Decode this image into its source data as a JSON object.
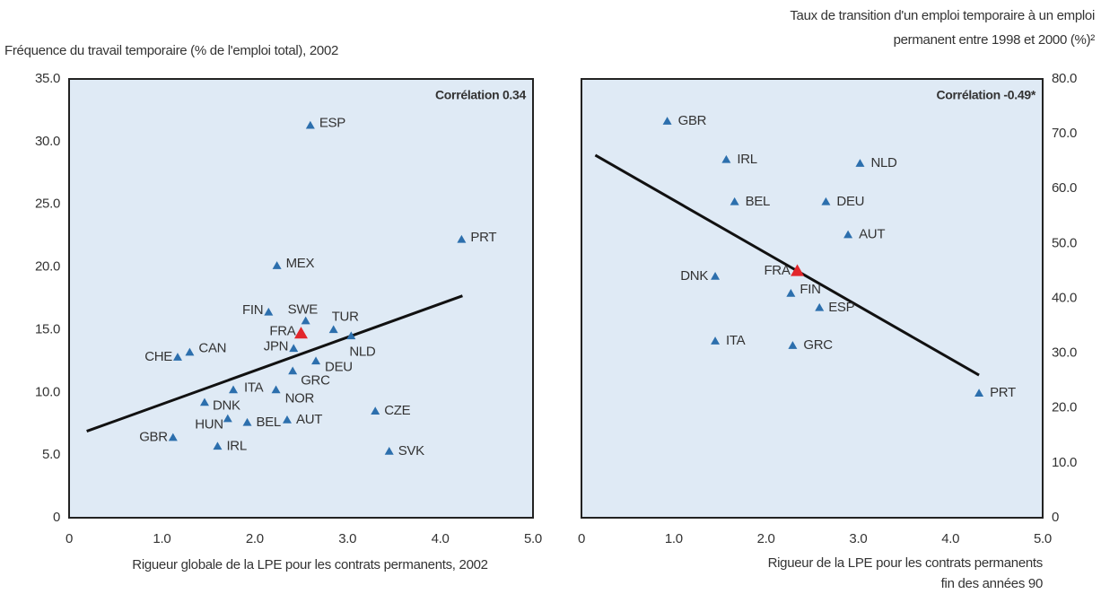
{
  "chart_data": [
    {
      "type": "scatter",
      "annotation": "Corrélation 0.34",
      "y_label": [
        "Fréquence du travail temporaire (% de l'emploi total), 2002"
      ],
      "x_label": [
        "Rigueur globale de la LPE pour les contrats permanents, 2002"
      ],
      "xlim": [
        0,
        5
      ],
      "ylim": [
        0,
        35
      ],
      "xticks": [
        0,
        {
          "value": 1,
          "label": "1.0"
        },
        {
          "value": 2,
          "label": "2.0"
        },
        {
          "value": 3,
          "label": "3.0"
        },
        {
          "value": 4,
          "label": "4.0"
        },
        {
          "value": 5,
          "label": "5.0"
        }
      ],
      "yticks": [
        0,
        {
          "value": 5,
          "label": "5.0"
        },
        {
          "value": 10,
          "label": "10.0"
        },
        {
          "value": 15,
          "label": "15.0"
        },
        {
          "value": 20,
          "label": "20.0"
        },
        {
          "value": 25,
          "label": "25.0"
        },
        {
          "value": 30,
          "label": "30.0"
        },
        {
          "value": 35,
          "label": "35.0"
        }
      ],
      "y_axis_side": "left",
      "color": "#2c6fad",
      "highlight": "FRA",
      "highlight_color": "#e2262b",
      "labels": [
        "ESP",
        "PRT",
        "MEX",
        "FIN",
        "SWE",
        "TUR",
        "FRA",
        "NLD",
        "JPN",
        "CAN",
        "CHE",
        "DEU",
        "GRC",
        "ITA",
        "NOR",
        "DNK",
        "CZE",
        "HUN",
        "AUT",
        "BEL",
        "GBR",
        "IRL",
        "SVK"
      ],
      "x": [
        2.6,
        4.23,
        2.24,
        2.15,
        2.55,
        2.85,
        2.5,
        3.04,
        2.42,
        1.3,
        1.17,
        2.66,
        2.41,
        1.77,
        2.23,
        1.46,
        3.3,
        1.71,
        2.35,
        1.92,
        1.12,
        1.6,
        3.45
      ],
      "y": [
        31.3,
        22.2,
        20.1,
        16.4,
        15.7,
        15.0,
        14.7,
        14.5,
        13.5,
        13.2,
        12.8,
        12.5,
        11.7,
        10.2,
        10.2,
        9.2,
        8.5,
        7.9,
        7.8,
        7.6,
        6.4,
        5.7,
        5.3
      ],
      "trendline": {
        "x": [
          0.19,
          4.24
        ],
        "y": [
          6.9,
          17.7
        ]
      }
    },
    {
      "type": "scatter",
      "annotation": "Corrélation -0.49*",
      "y_label": [
        "Taux de transition d'un emploi temporaire à un emploi",
        "permanent entre 1998 et 2000 (%)²"
      ],
      "x_label": [
        "Rigueur de la LPE pour les contrats permanents",
        "fin des années 90"
      ],
      "xlim": [
        0,
        5
      ],
      "ylim": [
        0,
        80
      ],
      "xticks": [
        0,
        {
          "value": 1,
          "label": "1.0"
        },
        {
          "value": 2,
          "label": "2.0"
        },
        {
          "value": 3,
          "label": "3.0"
        },
        {
          "value": 4,
          "label": "4.0"
        },
        {
          "value": 5,
          "label": "5.0"
        }
      ],
      "yticks": [
        0,
        {
          "value": 10,
          "label": "10.0"
        },
        {
          "value": 20,
          "label": "20.0"
        },
        {
          "value": 30,
          "label": "30.0"
        },
        {
          "value": 40,
          "label": "40.0"
        },
        {
          "value": 50,
          "label": "50.0"
        },
        {
          "value": 60,
          "label": "60.0"
        },
        {
          "value": 70,
          "label": "70.0"
        },
        {
          "value": 80,
          "label": "80.0"
        }
      ],
      "y_axis_side": "right",
      "color": "#2c6fad",
      "highlight": "FRA",
      "highlight_color": "#e2262b",
      "labels": [
        "GBR",
        "IRL",
        "NLD",
        "BEL",
        "DEU",
        "AUT",
        "FRA",
        "DNK",
        "FIN",
        "ESP",
        "ITA",
        "GRC",
        "PRT"
      ],
      "x": [
        0.93,
        1.57,
        3.02,
        1.66,
        2.65,
        2.89,
        2.34,
        1.45,
        2.27,
        2.58,
        1.45,
        2.29,
        4.31
      ],
      "y": [
        72.3,
        65.3,
        64.6,
        57.6,
        57.6,
        51.6,
        45.0,
        44.0,
        40.9,
        38.3,
        32.2,
        31.4,
        22.7
      ],
      "trendline": {
        "x": [
          0.15,
          4.31
        ],
        "y": [
          66.1,
          26.0
        ]
      }
    }
  ]
}
